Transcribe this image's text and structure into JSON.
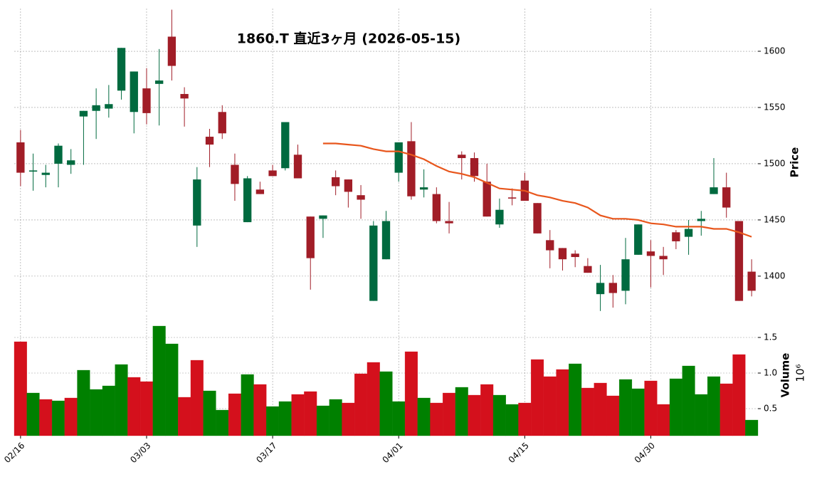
{
  "chart_data": [
    {
      "type": "candlestick",
      "title": "1860.T 直近3ヶ月 (2026-05-15)",
      "y_label": "Price",
      "up_color": "#006a3f",
      "down_color": "#a11d27",
      "grid": true,
      "open": [
        1519,
        1493,
        1490,
        1500,
        1499,
        1542,
        1547,
        1549,
        1565,
        1546,
        1567,
        1571,
        1613,
        1562,
        1445,
        1524,
        1546,
        1499,
        1448,
        1477,
        1494,
        1496,
        1508,
        1453,
        1451,
        1488,
        1486,
        1472,
        1378,
        1415,
        1492,
        1520,
        1477,
        1473,
        1449,
        1508,
        1505,
        1484,
        1446,
        1470,
        1485,
        1465,
        1432,
        1425,
        1420,
        1409,
        1384,
        1394,
        1387,
        1419,
        1422,
        1418,
        1439,
        1435,
        1449,
        1473,
        1479,
        1449,
        1404
      ],
      "high": [
        1530,
        1509,
        1499,
        1518,
        1513,
        1547,
        1567,
        1570,
        1603,
        1582,
        1585,
        1602,
        1637,
        1568,
        1497,
        1531,
        1552,
        1509,
        1489,
        1484,
        1499,
        1537,
        1517,
        1453,
        1454,
        1494,
        1486,
        1481,
        1449,
        1458,
        1519,
        1537,
        1495,
        1479,
        1466,
        1511,
        1510,
        1500,
        1469,
        1478,
        1492,
        1465,
        1441,
        1425,
        1423,
        1416,
        1410,
        1401,
        1434,
        1446,
        1432,
        1426,
        1441,
        1450,
        1458,
        1505,
        1492,
        1449,
        1415
      ],
      "low": [
        1480,
        1476,
        1479,
        1479,
        1491,
        1499,
        1522,
        1541,
        1557,
        1527,
        1535,
        1534,
        1574,
        1533,
        1426,
        1497,
        1522,
        1467,
        1448,
        1473,
        1489,
        1494,
        1487,
        1388,
        1434,
        1472,
        1461,
        1451,
        1378,
        1415,
        1484,
        1468,
        1470,
        1447,
        1438,
        1486,
        1484,
        1453,
        1443,
        1463,
        1467,
        1438,
        1407,
        1405,
        1408,
        1403,
        1369,
        1372,
        1375,
        1419,
        1390,
        1401,
        1424,
        1419,
        1436,
        1473,
        1452,
        1378,
        1382
      ],
      "close": [
        1492,
        1494,
        1492,
        1516,
        1503,
        1547,
        1552,
        1553,
        1603,
        1582,
        1545,
        1574,
        1587,
        1558,
        1486,
        1517,
        1527,
        1482,
        1487,
        1473,
        1489,
        1537,
        1487,
        1416,
        1454,
        1480,
        1475,
        1468,
        1445,
        1449,
        1519,
        1471,
        1479,
        1449,
        1447,
        1505,
        1489,
        1453,
        1459,
        1469,
        1467,
        1438,
        1423,
        1415,
        1417,
        1403,
        1394,
        1385,
        1415,
        1446,
        1418,
        1415,
        1431,
        1442,
        1451,
        1479,
        1461,
        1378,
        1387
      ],
      "ma": {
        "color": "#e8561c",
        "values": [
          null,
          null,
          null,
          null,
          null,
          null,
          null,
          null,
          null,
          null,
          null,
          null,
          null,
          null,
          null,
          null,
          null,
          null,
          null,
          null,
          null,
          null,
          null,
          null,
          1518,
          1518,
          1517,
          1516,
          1513,
          1511,
          1511,
          1508,
          1504,
          1498,
          1493,
          1491,
          1488,
          1483,
          1478,
          1477,
          1476,
          1472,
          1470,
          1467,
          1465,
          1461,
          1454,
          1451,
          1451,
          1450,
          1447,
          1446,
          1444,
          1444,
          1444,
          1442,
          1442,
          1439,
          1435
        ]
      },
      "ylim": [
        1367,
        1638
      ],
      "yticks": [
        1400,
        1450,
        1500,
        1550,
        1600
      ]
    },
    {
      "type": "bar",
      "y_label": "Volume",
      "scale_label": "10⁶",
      "grid": true,
      "categories": [
        "02/16",
        null,
        null,
        null,
        null,
        null,
        null,
        null,
        null,
        null,
        "03/03",
        null,
        null,
        null,
        null,
        null,
        null,
        null,
        null,
        null,
        "03/17",
        null,
        null,
        null,
        null,
        null,
        null,
        null,
        null,
        null,
        "04/01",
        null,
        null,
        null,
        null,
        null,
        null,
        null,
        null,
        null,
        "04/15",
        null,
        null,
        null,
        null,
        null,
        null,
        null,
        null,
        null,
        "04/30",
        null,
        null,
        null,
        null,
        null,
        null,
        null,
        null
      ],
      "values": [
        1.44,
        0.72,
        0.63,
        0.61,
        0.65,
        1.04,
        0.77,
        0.82,
        1.12,
        0.94,
        0.88,
        1.66,
        1.41,
        0.66,
        1.18,
        0.75,
        0.48,
        0.71,
        0.98,
        0.84,
        0.53,
        0.6,
        0.7,
        0.74,
        0.54,
        0.63,
        0.58,
        0.99,
        1.15,
        1.02,
        0.6,
        1.3,
        0.65,
        0.58,
        0.72,
        0.8,
        0.69,
        0.84,
        0.69,
        0.56,
        0.58,
        1.19,
        0.95,
        1.05,
        1.13,
        0.79,
        0.86,
        0.68,
        0.91,
        0.78,
        0.89,
        0.56,
        0.92,
        1.1,
        0.7,
        0.95,
        0.85,
        1.26,
        0.34
      ],
      "colors": [
        "#d4101c",
        "#008000",
        "#d4101c",
        "#008000",
        "#d4101c",
        "#008000",
        "#008000",
        "#008000",
        "#008000",
        "#d4101c",
        "#d4101c",
        "#008000",
        "#008000",
        "#d4101c",
        "#d4101c",
        "#008000",
        "#008000",
        "#d4101c",
        "#008000",
        "#d4101c",
        "#008000",
        "#008000",
        "#d4101c",
        "#d4101c",
        "#008000",
        "#008000",
        "#d4101c",
        "#d4101c",
        "#d4101c",
        "#008000",
        "#008000",
        "#d4101c",
        "#008000",
        "#d4101c",
        "#d4101c",
        "#008000",
        "#d4101c",
        "#d4101c",
        "#008000",
        "#008000",
        "#d4101c",
        "#d4101c",
        "#d4101c",
        "#d4101c",
        "#008000",
        "#d4101c",
        "#d4101c",
        "#d4101c",
        "#008000",
        "#008000",
        "#d4101c",
        "#d4101c",
        "#008000",
        "#008000",
        "#008000",
        "#008000",
        "#d4101c",
        "#d4101c",
        "#008000"
      ],
      "ylim": [
        0.12,
        1.81
      ],
      "yticks": [
        0.5,
        {
          "value": 1,
          "label": "1.0"
        },
        1.5
      ]
    }
  ]
}
